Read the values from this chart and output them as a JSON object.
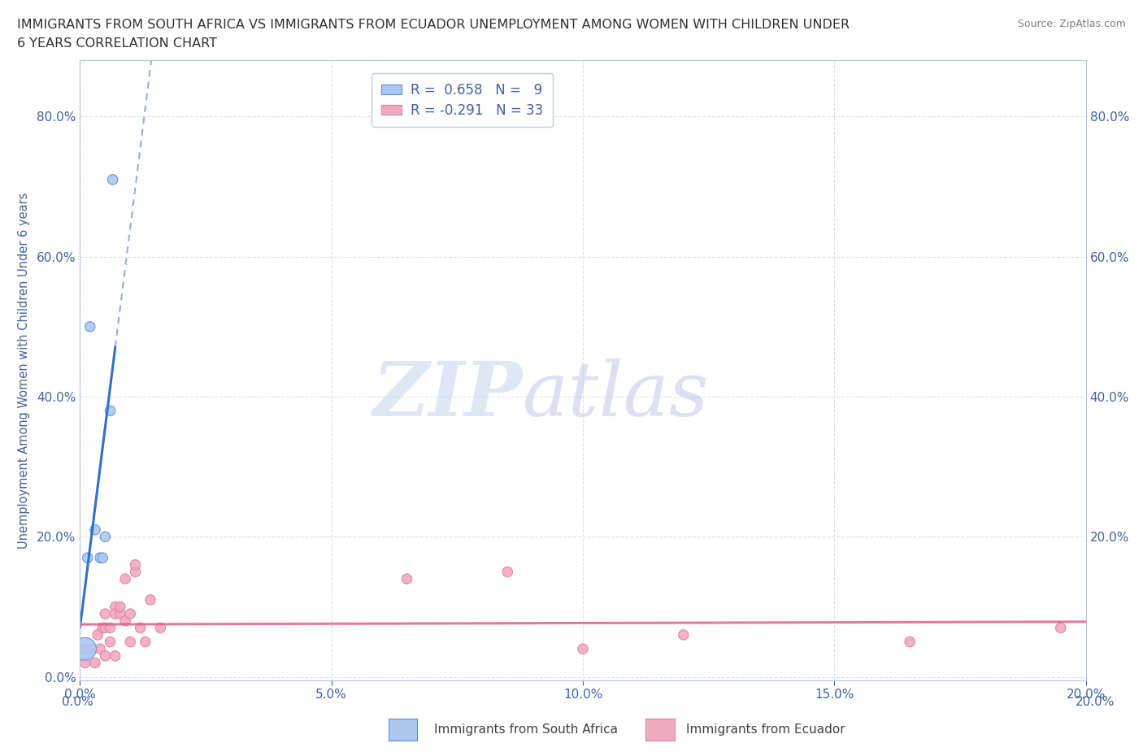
{
  "title_line1": "IMMIGRANTS FROM SOUTH AFRICA VS IMMIGRANTS FROM ECUADOR UNEMPLOYMENT AMONG WOMEN WITH CHILDREN UNDER",
  "title_line2": "6 YEARS CORRELATION CHART",
  "source": "Source: ZipAtlas.com",
  "ylabel": "Unemployment Among Women with Children Under 6 years",
  "xlim": [
    0.0,
    0.2
  ],
  "ylim": [
    -0.005,
    0.88
  ],
  "xticks": [
    0.0,
    0.05,
    0.1,
    0.15,
    0.2
  ],
  "yticks_left": [
    0.0,
    0.2,
    0.4,
    0.6,
    0.8
  ],
  "yticks_right": [
    0.2,
    0.4,
    0.6,
    0.8
  ],
  "south_africa_x": [
    0.001,
    0.0015,
    0.002,
    0.003,
    0.004,
    0.0045,
    0.005,
    0.006,
    0.0065
  ],
  "south_africa_y": [
    0.04,
    0.17,
    0.5,
    0.21,
    0.17,
    0.17,
    0.2,
    0.38,
    0.71
  ],
  "south_africa_sizes": [
    400,
    80,
    80,
    80,
    80,
    80,
    80,
    80,
    80
  ],
  "ecuador_x": [
    0.001,
    0.001,
    0.002,
    0.003,
    0.0035,
    0.004,
    0.0045,
    0.005,
    0.005,
    0.005,
    0.006,
    0.006,
    0.007,
    0.007,
    0.007,
    0.008,
    0.008,
    0.009,
    0.009,
    0.01,
    0.01,
    0.011,
    0.011,
    0.012,
    0.013,
    0.014,
    0.016,
    0.065,
    0.085,
    0.1,
    0.12,
    0.165,
    0.195
  ],
  "ecuador_y": [
    0.04,
    0.02,
    0.04,
    0.02,
    0.06,
    0.04,
    0.07,
    0.07,
    0.03,
    0.09,
    0.05,
    0.07,
    0.1,
    0.03,
    0.09,
    0.09,
    0.1,
    0.08,
    0.14,
    0.09,
    0.05,
    0.15,
    0.16,
    0.07,
    0.05,
    0.11,
    0.07,
    0.14,
    0.15,
    0.04,
    0.06,
    0.05,
    0.07
  ],
  "ecuador_sizes": [
    80,
    80,
    80,
    80,
    80,
    80,
    80,
    80,
    80,
    80,
    80,
    80,
    80,
    80,
    80,
    80,
    80,
    80,
    80,
    80,
    80,
    80,
    80,
    80,
    80,
    80,
    80,
    80,
    80,
    80,
    80,
    80,
    80
  ],
  "south_africa_color": "#aac8f0",
  "south_africa_edge": "#6090d0",
  "ecuador_color": "#f0aac0",
  "ecuador_edge": "#e080a0",
  "south_africa_line_color": "#3070c8",
  "ecuador_line_color": "#e06090",
  "sa_trend_x0": 0.0,
  "sa_trend_x1": 0.007,
  "sa_trend_x_dash0": 0.007,
  "sa_trend_x_dash1": 0.02,
  "ecu_trend_x0": 0.0,
  "ecu_trend_x1": 0.2,
  "R_south_africa": 0.658,
  "N_south_africa": 9,
  "R_ecuador": -0.291,
  "N_ecuador": 33,
  "watermark_zip": "ZIP",
  "watermark_atlas": "atlas",
  "watermark_color_zip": "#c8d8f0",
  "watermark_color_atlas": "#c0c8e8",
  "legend_south_africa": "Immigrants from South Africa",
  "legend_ecuador": "Immigrants from Ecuador",
  "background_color": "#ffffff",
  "grid_color": "#d0d8e8",
  "title_color": "#303030",
  "axis_label_color": "#4060a0",
  "tick_label_color": "#4060a0",
  "source_color": "#808080"
}
